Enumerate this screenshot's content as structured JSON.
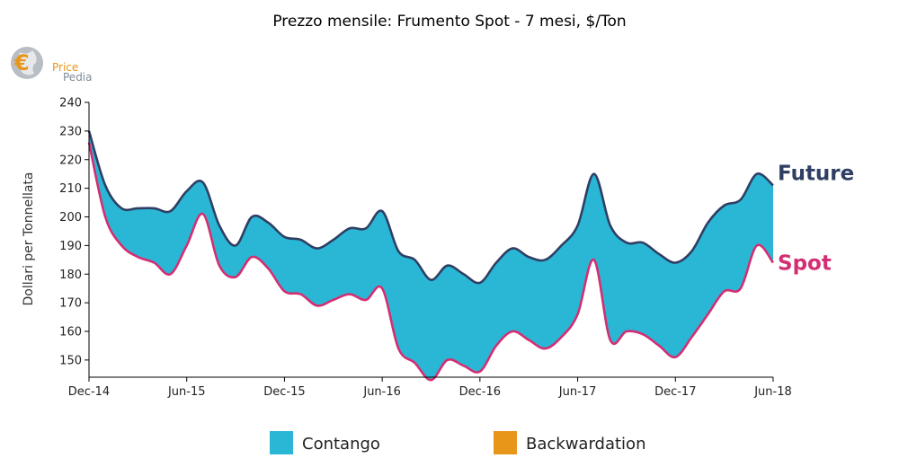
{
  "logo": {
    "line1": "Price",
    "line2": "Pedia"
  },
  "chart_data": {
    "type": "area",
    "title": "Prezzo mensile: Frumento Spot - 7 mesi, $/Ton",
    "ylabel": "Dollari per Tonnellata",
    "xlabel": "",
    "ylim": [
      144,
      240
    ],
    "yticks": [
      150,
      160,
      170,
      180,
      190,
      200,
      210,
      220,
      230,
      240
    ],
    "xticks": [
      "Dec-14",
      "Jun-15",
      "Dec-15",
      "Jun-16",
      "Dec-16",
      "Jun-17",
      "Dec-17",
      "Jun-18"
    ],
    "x": [
      "Dec-14",
      "Jan-15",
      "Feb-15",
      "Mar-15",
      "Apr-15",
      "May-15",
      "Jun-15",
      "Jul-15",
      "Aug-15",
      "Sep-15",
      "Oct-15",
      "Nov-15",
      "Dec-15",
      "Jan-16",
      "Feb-16",
      "Mar-16",
      "Apr-16",
      "May-16",
      "Jun-16",
      "Jul-16",
      "Aug-16",
      "Sep-16",
      "Oct-16",
      "Nov-16",
      "Dec-16",
      "Jan-17",
      "Feb-17",
      "Mar-17",
      "Apr-17",
      "May-17",
      "Jun-17",
      "Jul-17",
      "Aug-17",
      "Sep-17",
      "Oct-17",
      "Nov-17",
      "Dec-17",
      "Jan-18",
      "Feb-18",
      "Mar-18",
      "Apr-18",
      "May-18",
      "Jun-18"
    ],
    "series": [
      {
        "name": "Future",
        "color": "#2f3f63",
        "values": [
          230,
          211,
          203,
          203,
          203,
          202,
          209,
          212,
          197,
          190,
          200,
          198,
          193,
          192,
          189,
          192,
          196,
          196,
          202,
          188,
          185,
          178,
          183,
          180,
          177,
          184,
          189,
          186,
          185,
          190,
          197,
          215,
          197,
          191,
          191,
          187,
          184,
          188,
          198,
          204,
          206,
          215,
          211
        ]
      },
      {
        "name": "Spot",
        "color": "#d42e72",
        "values": [
          226,
          200,
          190,
          186,
          184,
          180,
          190,
          201,
          183,
          179,
          186,
          182,
          174,
          173,
          169,
          171,
          173,
          171,
          175,
          154,
          149,
          143,
          150,
          148,
          146,
          155,
          160,
          157,
          154,
          158,
          166,
          185,
          157,
          160,
          159,
          155,
          151,
          158,
          166,
          174,
          175,
          190,
          184
        ]
      }
    ],
    "legend": {
      "position": "bottom",
      "items": [
        {
          "label": "Contango",
          "color": "#2ab7d6"
        },
        {
          "label": "Backwardation",
          "color": "#e8961a"
        }
      ]
    },
    "grid": false
  }
}
